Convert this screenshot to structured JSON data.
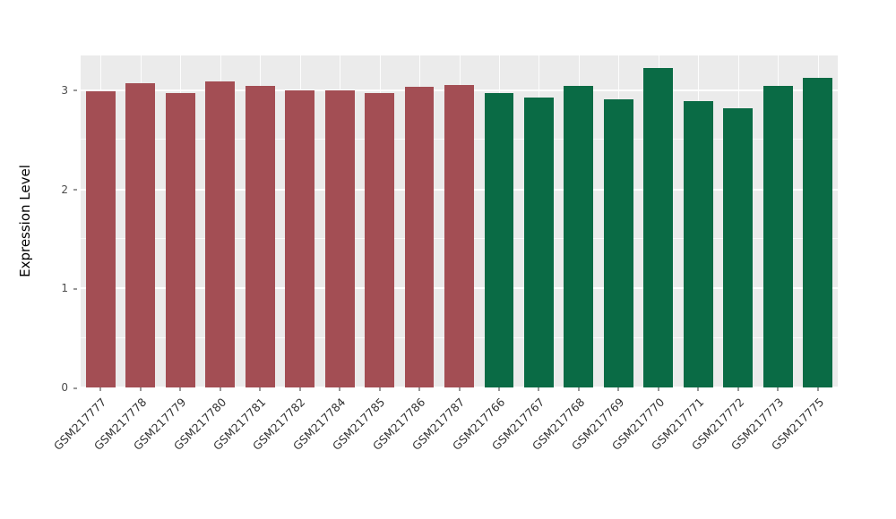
{
  "chart_data": {
    "type": "bar",
    "title": "",
    "xlabel": "",
    "ylabel": "Expression Level",
    "categories": [
      "GSM217777",
      "GSM217778",
      "GSM217779",
      "GSM217780",
      "GSM217781",
      "GSM217782",
      "GSM217784",
      "GSM217785",
      "GSM217786",
      "GSM217787",
      "GSM217766",
      "GSM217767",
      "GSM217768",
      "GSM217769",
      "GSM217770",
      "GSM217771",
      "GSM217772",
      "GSM217773",
      "GSM217775"
    ],
    "values": [
      2.99,
      3.07,
      2.97,
      3.09,
      3.04,
      3.0,
      3.0,
      2.97,
      3.03,
      3.05,
      2.97,
      2.93,
      3.04,
      2.91,
      3.22,
      2.89,
      2.82,
      3.04,
      3.12
    ],
    "groups": [
      "red",
      "red",
      "red",
      "red",
      "red",
      "red",
      "red",
      "red",
      "red",
      "red",
      "green",
      "green",
      "green",
      "green",
      "green",
      "green",
      "green",
      "green",
      "green"
    ],
    "group_colors": {
      "red": "#A34E54",
      "green": "#0A6B45"
    },
    "ylim": [
      0,
      3.35
    ],
    "yticks": [
      0,
      1,
      2,
      3
    ],
    "minor_ticks": [
      0.5,
      1.5,
      2.5
    ],
    "panel_bg": "#EBEBEB",
    "grid_color": "#FFFFFF",
    "legend": "none",
    "grid": "on"
  }
}
